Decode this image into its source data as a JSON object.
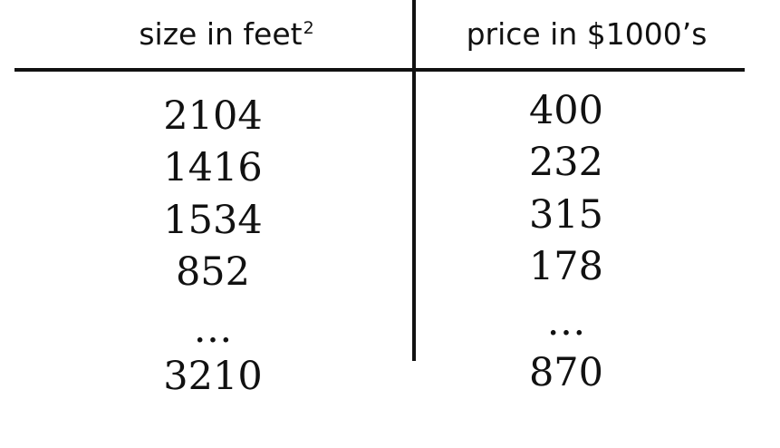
{
  "table": {
    "headers": {
      "size": "size in feet",
      "size_superscript": "2",
      "price": "price in $1000’s"
    },
    "size_values": [
      "2104",
      "1416",
      "1534",
      "852",
      "…",
      "3210"
    ],
    "price_values": [
      "400",
      "232",
      "315",
      "178",
      "…",
      "870"
    ]
  }
}
